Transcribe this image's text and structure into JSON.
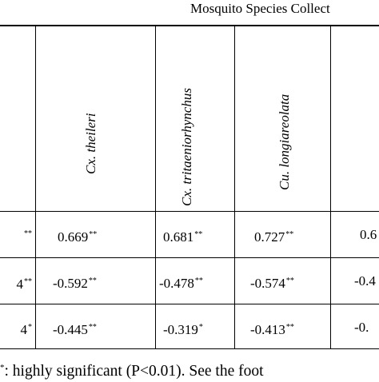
{
  "table": {
    "group_header": "Mosquito Species Collect",
    "species": [
      "Cx. theileri",
      "Cx. tritaeniorhynchus",
      "Cu. longiareolata"
    ],
    "rows": [
      {
        "left_sig": "**",
        "cells": [
          {
            "value": "0.669",
            "sig": "**"
          },
          {
            "value": "0.681",
            "sig": "**"
          },
          {
            "value": "0.727",
            "sig": "**"
          }
        ],
        "right_partial": "0.6"
      },
      {
        "left_partial": "4",
        "left_sig": "**",
        "cells": [
          {
            "value": "-0.592",
            "sig": "**"
          },
          {
            "value": "-0.478",
            "sig": "**"
          },
          {
            "value": "-0.574",
            "sig": "**"
          }
        ],
        "right_partial": "-0.4"
      },
      {
        "left_partial": "4",
        "left_sig": "*",
        "cells": [
          {
            "value": "-0.445",
            "sig": "**"
          },
          {
            "value": "-0.319",
            "sig": "*"
          },
          {
            "value": "-0.413",
            "sig": "**"
          }
        ],
        "right_partial": "-0."
      }
    ]
  },
  "footnote": {
    "marker": "*",
    "text": ": highly significant (P<0.01). See the foot"
  }
}
